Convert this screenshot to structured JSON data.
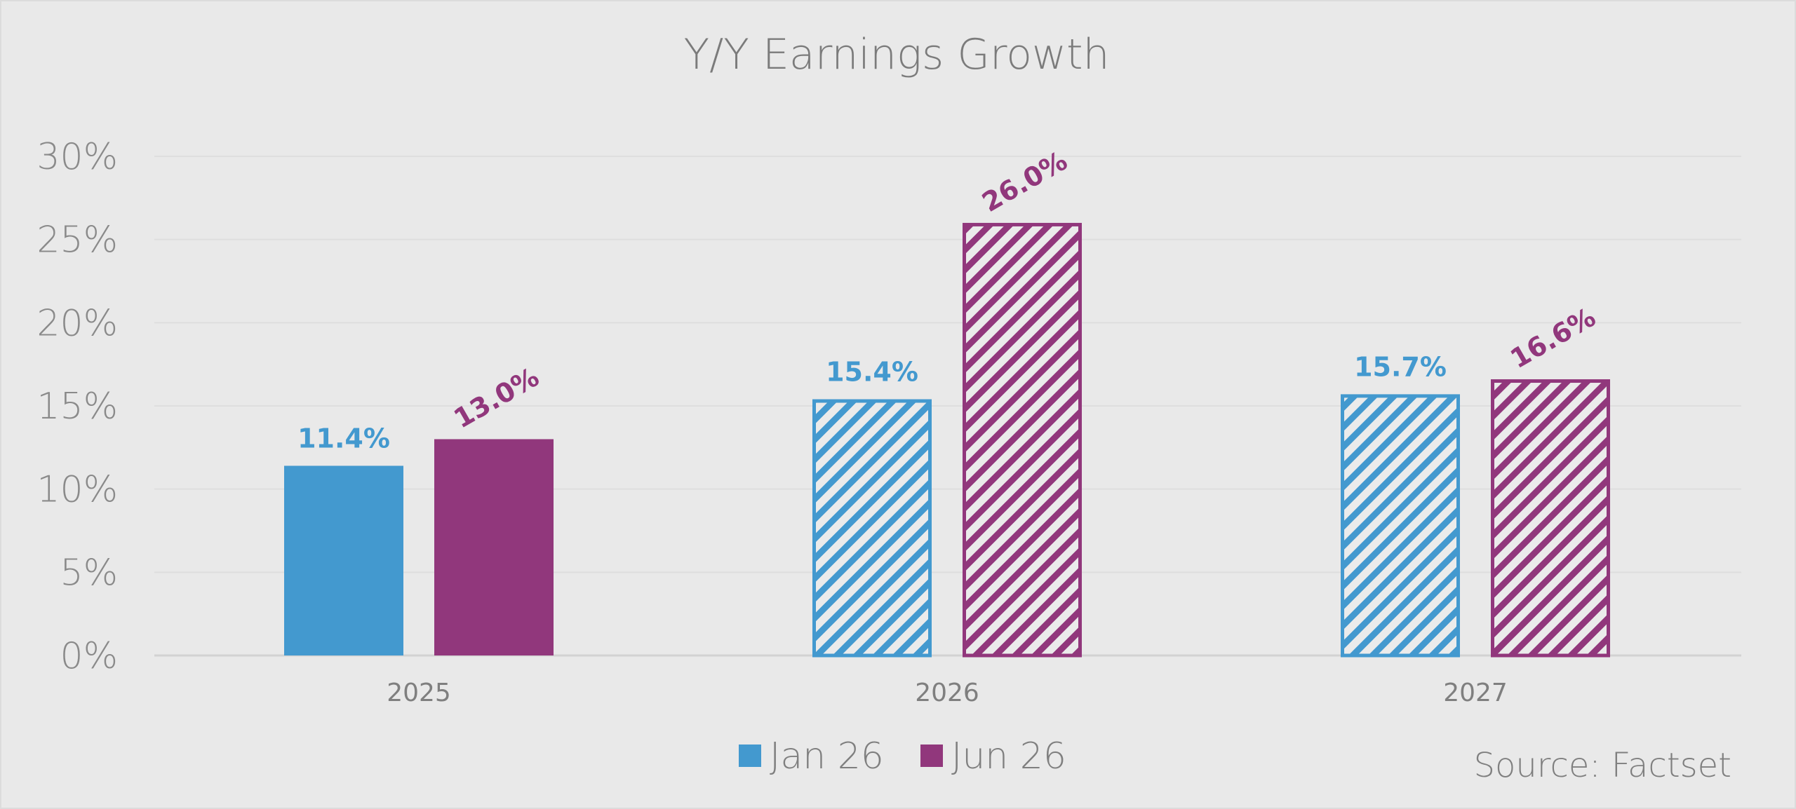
{
  "chart_data": {
    "type": "bar",
    "title": "Y/Y Earnings Growth",
    "categories": [
      "2025",
      "2026",
      "2027"
    ],
    "series": [
      {
        "name": "Jan 26",
        "values": [
          11.4,
          15.4,
          15.7
        ],
        "labels": [
          "11.4%",
          "15.4%",
          "15.7%"
        ],
        "color": "#4399cf",
        "fill_style": [
          "solid",
          "hatched",
          "hatched"
        ],
        "label_rotation": [
          0,
          0,
          0
        ]
      },
      {
        "name": "Jun 26",
        "values": [
          13.0,
          26.0,
          16.6
        ],
        "labels": [
          "13.0%",
          "26.0%",
          "16.6%"
        ],
        "color": "#91377c",
        "fill_style": [
          "solid",
          "hatched",
          "hatched"
        ],
        "label_rotation": [
          -30,
          -30,
          -30
        ]
      }
    ],
    "ylim": [
      0,
      30
    ],
    "yticks": [
      0,
      5,
      10,
      15,
      20,
      25,
      30
    ],
    "ytick_labels": [
      "0%",
      "5%",
      "10%",
      "15%",
      "20%",
      "25%",
      "30%"
    ],
    "grid": true,
    "legend_position": "bottom-center",
    "source": "Source: Factset"
  }
}
